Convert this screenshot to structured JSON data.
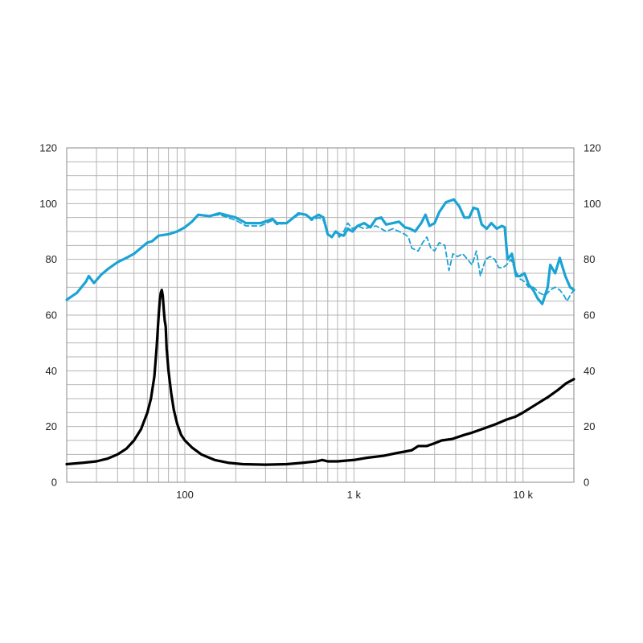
{
  "chart_data": {
    "type": "line",
    "title": "",
    "xlabel": "",
    "ylabel": "",
    "x_scale": "log",
    "xlim": [
      20,
      20000
    ],
    "ylim": [
      0,
      120
    ],
    "grid": true,
    "y_ticks": [
      0,
      20,
      40,
      60,
      80,
      100,
      120
    ],
    "y_tick_labels": [
      "0",
      "20",
      "40",
      "60",
      "80",
      "100",
      "120"
    ],
    "x_ticks": [
      100,
      1000,
      10000
    ],
    "x_tick_labels": [
      "100",
      "1 k",
      "10 k"
    ],
    "colors": {
      "spl": "#1aa3d4",
      "impedance": "#000000",
      "grid": "#b5b5b5",
      "axis": "#555555"
    },
    "series": [
      {
        "style": "solid",
        "color": "#1aa3d4",
        "points": [
          [
            20,
            65.5
          ],
          [
            23,
            68
          ],
          [
            26,
            72
          ],
          [
            27,
            74
          ],
          [
            29,
            71.5
          ],
          [
            32,
            74.5
          ],
          [
            35,
            76.5
          ],
          [
            40,
            79
          ],
          [
            45,
            80.5
          ],
          [
            50,
            82
          ],
          [
            56,
            84.5
          ],
          [
            60,
            86
          ],
          [
            64,
            86.5
          ],
          [
            70,
            88.5
          ],
          [
            80,
            89
          ],
          [
            90,
            90
          ],
          [
            100,
            91.5
          ],
          [
            110,
            93.5
          ],
          [
            120,
            96
          ],
          [
            140,
            95.5
          ],
          [
            160,
            96.5
          ],
          [
            200,
            95
          ],
          [
            230,
            93
          ],
          [
            280,
            93
          ],
          [
            330,
            94.5
          ],
          [
            350,
            93
          ],
          [
            400,
            93
          ],
          [
            470,
            96.5
          ],
          [
            520,
            96
          ],
          [
            560,
            94.5
          ],
          [
            620,
            96
          ],
          [
            660,
            95
          ],
          [
            700,
            89
          ],
          [
            740,
            88
          ],
          [
            780,
            90
          ],
          [
            820,
            89
          ],
          [
            870,
            88.5
          ],
          [
            920,
            91
          ],
          [
            980,
            90
          ],
          [
            1050,
            92
          ],
          [
            1150,
            93
          ],
          [
            1250,
            91.5
          ],
          [
            1350,
            94.5
          ],
          [
            1450,
            95
          ],
          [
            1550,
            92.5
          ],
          [
            1700,
            93
          ],
          [
            1850,
            93.5
          ],
          [
            2000,
            91.5
          ],
          [
            2150,
            91
          ],
          [
            2300,
            90
          ],
          [
            2500,
            93
          ],
          [
            2650,
            96
          ],
          [
            2800,
            92
          ],
          [
            3000,
            93
          ],
          [
            3200,
            97
          ],
          [
            3500,
            100.5
          ],
          [
            3900,
            101.5
          ],
          [
            4200,
            99
          ],
          [
            4500,
            95
          ],
          [
            4800,
            95
          ],
          [
            5100,
            98.5
          ],
          [
            5400,
            98
          ],
          [
            5700,
            92.5
          ],
          [
            6100,
            91
          ],
          [
            6500,
            93
          ],
          [
            7000,
            91
          ],
          [
            7500,
            92
          ],
          [
            7800,
            91.5
          ],
          [
            8100,
            80
          ],
          [
            8600,
            82
          ],
          [
            9100,
            74
          ],
          [
            9600,
            74
          ],
          [
            10200,
            75
          ],
          [
            10800,
            71
          ],
          [
            11500,
            69
          ],
          [
            12200,
            66
          ],
          [
            13000,
            64
          ],
          [
            14000,
            70
          ],
          [
            14500,
            78
          ],
          [
            15500,
            75
          ],
          [
            16500,
            80.5
          ],
          [
            17800,
            74
          ],
          [
            19000,
            70
          ],
          [
            20000,
            69
          ]
        ]
      },
      {
        "style": "dashed",
        "color": "#1aa3d4",
        "points": [
          [
            20,
            65.5
          ],
          [
            23,
            68
          ],
          [
            26,
            72
          ],
          [
            27,
            74
          ],
          [
            29,
            71.5
          ],
          [
            32,
            74.5
          ],
          [
            35,
            76.5
          ],
          [
            40,
            79
          ],
          [
            45,
            80.5
          ],
          [
            50,
            82
          ],
          [
            56,
            84.5
          ],
          [
            60,
            86
          ],
          [
            64,
            86.5
          ],
          [
            70,
            88.5
          ],
          [
            80,
            89
          ],
          [
            90,
            90
          ],
          [
            100,
            91.5
          ],
          [
            110,
            93.5
          ],
          [
            120,
            96
          ],
          [
            140,
            95.5
          ],
          [
            160,
            96
          ],
          [
            200,
            94
          ],
          [
            230,
            92
          ],
          [
            280,
            92
          ],
          [
            330,
            94
          ],
          [
            350,
            92.5
          ],
          [
            400,
            93
          ],
          [
            470,
            96
          ],
          [
            520,
            96
          ],
          [
            560,
            94
          ],
          [
            620,
            95
          ],
          [
            660,
            94
          ],
          [
            700,
            89
          ],
          [
            740,
            88
          ],
          [
            780,
            90
          ],
          [
            820,
            88
          ],
          [
            870,
            90
          ],
          [
            920,
            93
          ],
          [
            980,
            91
          ],
          [
            1050,
            92
          ],
          [
            1150,
            91
          ],
          [
            1250,
            91.5
          ],
          [
            1350,
            92
          ],
          [
            1450,
            91
          ],
          [
            1550,
            90
          ],
          [
            1700,
            91
          ],
          [
            1850,
            90
          ],
          [
            2000,
            89
          ],
          [
            2100,
            88
          ],
          [
            2200,
            84
          ],
          [
            2400,
            83
          ],
          [
            2550,
            86
          ],
          [
            2700,
            88
          ],
          [
            2850,
            84
          ],
          [
            3000,
            83
          ],
          [
            3200,
            86
          ],
          [
            3450,
            85
          ],
          [
            3650,
            76
          ],
          [
            3850,
            82
          ],
          [
            4100,
            81
          ],
          [
            4400,
            82
          ],
          [
            4700,
            80
          ],
          [
            5000,
            78
          ],
          [
            5300,
            83
          ],
          [
            5600,
            74
          ],
          [
            6000,
            80
          ],
          [
            6400,
            81
          ],
          [
            6800,
            80
          ],
          [
            7200,
            77
          ],
          [
            7600,
            77
          ],
          [
            8000,
            78
          ],
          [
            8500,
            80
          ],
          [
            9000,
            76
          ],
          [
            9600,
            73
          ],
          [
            10200,
            72
          ],
          [
            10800,
            70
          ],
          [
            11500,
            70
          ],
          [
            12500,
            68
          ],
          [
            13500,
            67
          ],
          [
            14500,
            69
          ],
          [
            15500,
            70
          ],
          [
            16500,
            69
          ],
          [
            17500,
            67
          ],
          [
            18200,
            65
          ],
          [
            19000,
            67
          ],
          [
            20000,
            69
          ]
        ]
      },
      {
        "style": "solid",
        "color": "#000000",
        "points": [
          [
            20,
            6.5
          ],
          [
            25,
            7
          ],
          [
            30,
            7.5
          ],
          [
            35,
            8.5
          ],
          [
            40,
            10
          ],
          [
            45,
            12
          ],
          [
            50,
            15
          ],
          [
            55,
            19
          ],
          [
            60,
            25
          ],
          [
            63,
            30
          ],
          [
            66,
            38
          ],
          [
            68,
            48
          ],
          [
            70,
            60
          ],
          [
            71,
            65
          ],
          [
            72,
            68
          ],
          [
            73,
            69
          ],
          [
            74,
            67
          ],
          [
            75,
            62
          ],
          [
            76,
            58
          ],
          [
            77,
            56
          ],
          [
            78,
            48
          ],
          [
            80,
            40
          ],
          [
            83,
            32
          ],
          [
            86,
            26
          ],
          [
            90,
            21
          ],
          [
            95,
            17
          ],
          [
            100,
            15
          ],
          [
            110,
            12.5
          ],
          [
            125,
            10
          ],
          [
            150,
            8
          ],
          [
            180,
            7
          ],
          [
            220,
            6.5
          ],
          [
            300,
            6.3
          ],
          [
            400,
            6.5
          ],
          [
            500,
            7
          ],
          [
            600,
            7.5
          ],
          [
            650,
            8
          ],
          [
            700,
            7.5
          ],
          [
            800,
            7.5
          ],
          [
            1000,
            8
          ],
          [
            1200,
            8.8
          ],
          [
            1500,
            9.5
          ],
          [
            1800,
            10.5
          ],
          [
            2000,
            11
          ],
          [
            2200,
            11.5
          ],
          [
            2400,
            13
          ],
          [
            2700,
            13
          ],
          [
            3000,
            14
          ],
          [
            3300,
            15
          ],
          [
            3800,
            15.5
          ],
          [
            4500,
            17
          ],
          [
            5000,
            17.8
          ],
          [
            6000,
            19.5
          ],
          [
            7000,
            21
          ],
          [
            8000,
            22.5
          ],
          [
            9000,
            23.5
          ],
          [
            10000,
            25
          ],
          [
            12000,
            28
          ],
          [
            14000,
            30.5
          ],
          [
            16000,
            33
          ],
          [
            18000,
            35.5
          ],
          [
            20000,
            37
          ]
        ]
      }
    ]
  }
}
